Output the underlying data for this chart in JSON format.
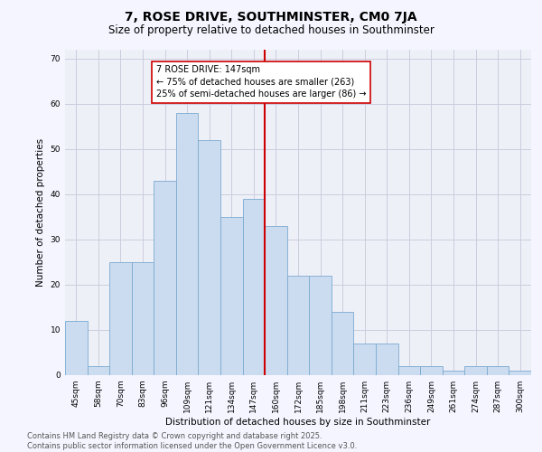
{
  "title": "7, ROSE DRIVE, SOUTHMINSTER, CM0 7JA",
  "subtitle": "Size of property relative to detached houses in Southminster",
  "xlabel": "Distribution of detached houses by size in Southminster",
  "ylabel": "Number of detached properties",
  "categories": [
    "45sqm",
    "58sqm",
    "70sqm",
    "83sqm",
    "96sqm",
    "109sqm",
    "121sqm",
    "134sqm",
    "147sqm",
    "160sqm",
    "172sqm",
    "185sqm",
    "198sqm",
    "211sqm",
    "223sqm",
    "236sqm",
    "249sqm",
    "261sqm",
    "274sqm",
    "287sqm",
    "300sqm"
  ],
  "values": [
    12,
    2,
    25,
    25,
    43,
    58,
    52,
    35,
    39,
    33,
    22,
    22,
    14,
    7,
    7,
    2,
    2,
    1,
    2,
    2,
    1
  ],
  "bar_color": "#ccdcf0",
  "bar_edge_color": "#7aaad0",
  "vline_x_idx": 8,
  "vline_color": "#cc0000",
  "annotation_text": "7 ROSE DRIVE: 147sqm\n← 75% of detached houses are smaller (263)\n25% of semi-detached houses are larger (86) →",
  "annotation_box_color": "#ffffff",
  "annotation_box_edge": "#cc0000",
  "ylim": [
    0,
    72
  ],
  "yticks": [
    0,
    10,
    20,
    30,
    40,
    50,
    60,
    70
  ],
  "grid_color": "#ccccdd",
  "bg_color": "#eef0f8",
  "fig_color": "#f5f5ff",
  "footer": "Contains HM Land Registry data © Crown copyright and database right 2025.\nContains public sector information licensed under the Open Government Licence v3.0.",
  "title_fontsize": 10,
  "subtitle_fontsize": 8.5,
  "label_fontsize": 7.5,
  "tick_fontsize": 6.5,
  "footer_fontsize": 6.0,
  "annot_fontsize": 7.0
}
